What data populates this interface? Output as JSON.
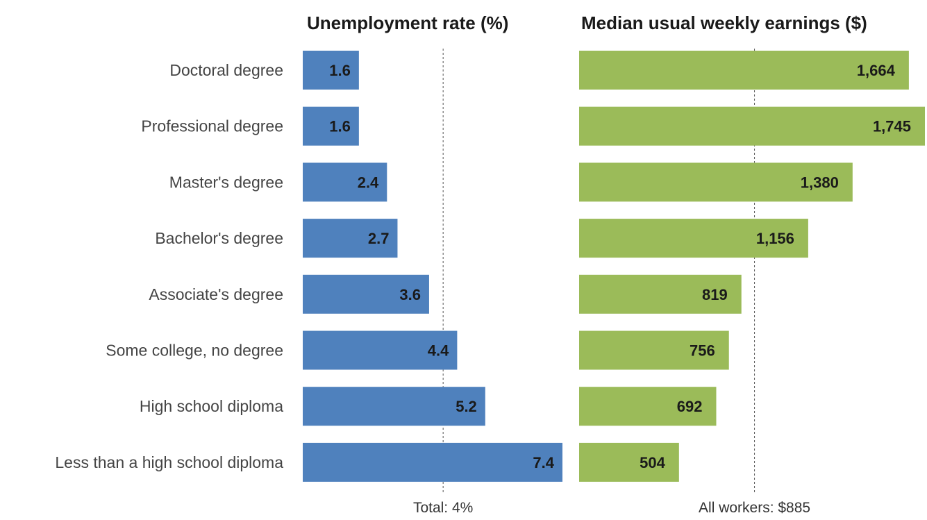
{
  "chart_data": [
    {
      "type": "bar",
      "orientation": "horizontal",
      "title": "Unemployment rate (%)",
      "categories": [
        "Doctoral degree",
        "Professional degree",
        "Master's degree",
        "Bachelor's degree",
        "Associate's degree",
        "Some college, no degree",
        "High school diploma",
        "Less than a high school diploma"
      ],
      "values": [
        1.6,
        1.6,
        2.4,
        2.7,
        3.6,
        4.4,
        5.2,
        7.4
      ],
      "value_labels": [
        "1.6",
        "1.6",
        "2.4",
        "2.7",
        "3.6",
        "4.4",
        "5.2",
        "7.4"
      ],
      "reference_line": {
        "value": 4.0,
        "label": "Total: 4%"
      },
      "xlim": [
        0,
        7.4
      ],
      "grid": false,
      "color": "#4f81bd"
    },
    {
      "type": "bar",
      "orientation": "horizontal",
      "title": "Median usual weekly earnings ($)",
      "categories": [
        "Doctoral degree",
        "Professional degree",
        "Master's degree",
        "Bachelor's degree",
        "Associate's degree",
        "Some college, no degree",
        "High school diploma",
        "Less than a high school diploma"
      ],
      "values": [
        1664,
        1745,
        1380,
        1156,
        819,
        756,
        692,
        504
      ],
      "value_labels": [
        "1,664",
        "1,745",
        "1,380",
        "1,156",
        "819",
        "756",
        "692",
        "504"
      ],
      "reference_line": {
        "value": 885,
        "label": "All workers: $885"
      },
      "xlim": [
        0,
        1745
      ],
      "grid": false,
      "color": "#9bbb59"
    }
  ]
}
